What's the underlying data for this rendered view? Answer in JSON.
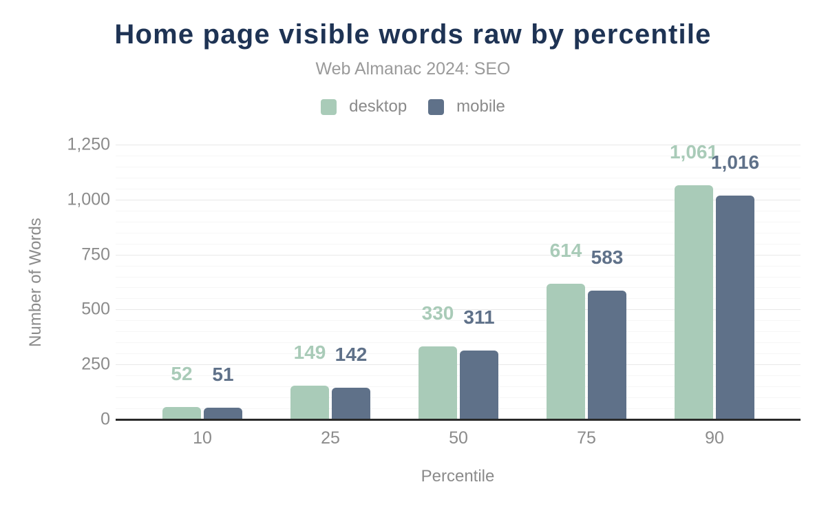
{
  "chart_data": {
    "type": "bar",
    "title": "Home page visible words raw by percentile",
    "subtitle": "Web Almanac 2024: SEO",
    "categories": [
      "10",
      "25",
      "50",
      "75",
      "90"
    ],
    "series": [
      {
        "name": "desktop",
        "color": "#a9cbb8",
        "values": [
          52,
          149,
          330,
          614,
          1061
        ]
      },
      {
        "name": "mobile",
        "color": "#5f7189",
        "values": [
          51,
          142,
          311,
          583,
          1016
        ]
      }
    ],
    "xlabel": "Percentile",
    "ylabel": "Number of Words",
    "ylim": [
      0,
      1250
    ],
    "yticks": [
      0,
      250,
      500,
      750,
      1000,
      1250
    ],
    "minor_tick_step": 50,
    "grid": true,
    "legend_position": "top",
    "value_labels": true,
    "number_format": "thousands-comma"
  },
  "colors": {
    "title": "#1e3354",
    "subtitle": "#9a9a9a",
    "axis_text": "#8b8b8b",
    "legend_text": "#8a8a8a",
    "axis_line": "#2a2a2a",
    "grid_major": "#e8e8e8",
    "grid_minor": "#f6f6f6",
    "background": "#ffffff"
  }
}
